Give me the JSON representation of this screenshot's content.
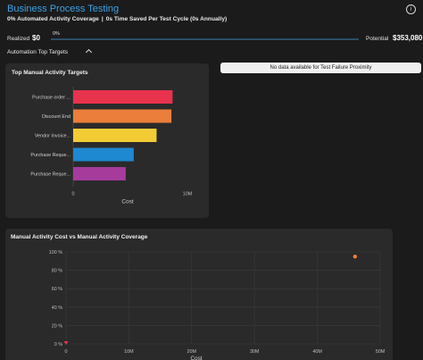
{
  "header": {
    "title": "Business Process Testing",
    "coverage": "0% Automated Activity Coverage",
    "separator": "|",
    "time_saved": "0s Time Saved Per Test Cycle (0s Annually)",
    "info_icon": "i"
  },
  "progress": {
    "realized_label": "Realized",
    "realized_value": "$0",
    "percent_label": "0%",
    "percent": 0,
    "potential_label": "Potential",
    "potential_value": "$353,080"
  },
  "automation_toggle": {
    "label": "Automation Top Targets",
    "icon": "chevron-up-icon"
  },
  "failure_proximity": {
    "message": "No data available for Test Failure Proximity"
  },
  "colors": {
    "accent": "#3aa3e6",
    "bars": [
      "#e8334e",
      "#ea7e3a",
      "#f3cc35",
      "#1e88d0",
      "#a63b9c"
    ],
    "scatter_point": "#ee7e3a",
    "scatter_origin": "#e8334e"
  },
  "top_targets_chart": {
    "title": "Top Manual Activity Targets",
    "xlabel": "Cost",
    "xticks": [
      "0",
      "10M"
    ],
    "chart_data": {
      "type": "bar",
      "orientation": "horizontal",
      "categories": [
        "Purchase order ...",
        "Discount End",
        "Vendor Invoice...",
        "Purchase Reque...",
        "Purchase Reque..."
      ],
      "values": [
        8.7,
        8.6,
        7.3,
        5.3,
        4.6
      ],
      "xlim": [
        0,
        10
      ],
      "units": "M"
    }
  },
  "scatter_chart": {
    "title": "Manual Activity Cost vs Manual Activity Coverage",
    "xlabel": "Cost",
    "yticks": [
      "0 %",
      "20 %",
      "40 %",
      "60 %",
      "80 %",
      "100 %"
    ],
    "xticks": [
      "0",
      "10M",
      "20M",
      "30M",
      "40M",
      "50M"
    ],
    "chart_data": {
      "type": "scatter",
      "points": [
        {
          "x": 0,
          "y": 0,
          "color": "#e8334e"
        },
        {
          "x": 46,
          "y": 95,
          "color": "#ee7e3a"
        }
      ],
      "xlim": [
        0,
        50
      ],
      "ylim": [
        0,
        100
      ],
      "grid": true
    }
  }
}
